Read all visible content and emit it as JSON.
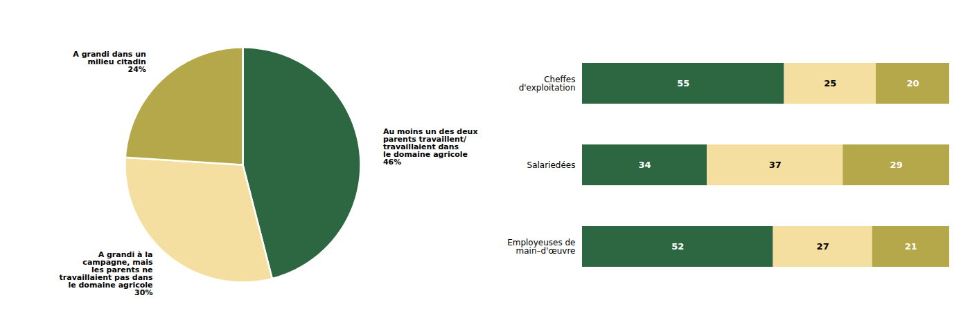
{
  "chart_data": [
    {
      "type": "pie",
      "categories": [
        "Au moins un des deux\nparents travaillent/\ntravaillaient dans\nle domaine agricole\n46%",
        "A grandi à la\ncampagne, mais\nles parents ne\ntravaillaient pas dans\nle domaine agricole\n30%",
        "A grandi dans un\nmilieu citadin\n24%"
      ],
      "values": [
        46,
        30,
        24
      ],
      "colors": [
        "#2d6741",
        "#f5dfa0",
        "#b5a84a"
      ]
    },
    {
      "type": "bar",
      "orientation": "horizontal",
      "stacked": true,
      "categories": [
        "Cheffes\nd'exploitation",
        "Salariedées",
        "Employeuses de\nmain–d'œuvre"
      ],
      "series": [
        {
          "color": "#2d6741",
          "values": [
            55,
            34,
            52
          ]
        },
        {
          "color": "#f5dfa0",
          "values": [
            25,
            37,
            27
          ]
        },
        {
          "color": "#b5a84a",
          "values": [
            20,
            29,
            21
          ]
        }
      ],
      "data_labels": true,
      "tick_labels": "y"
    }
  ]
}
